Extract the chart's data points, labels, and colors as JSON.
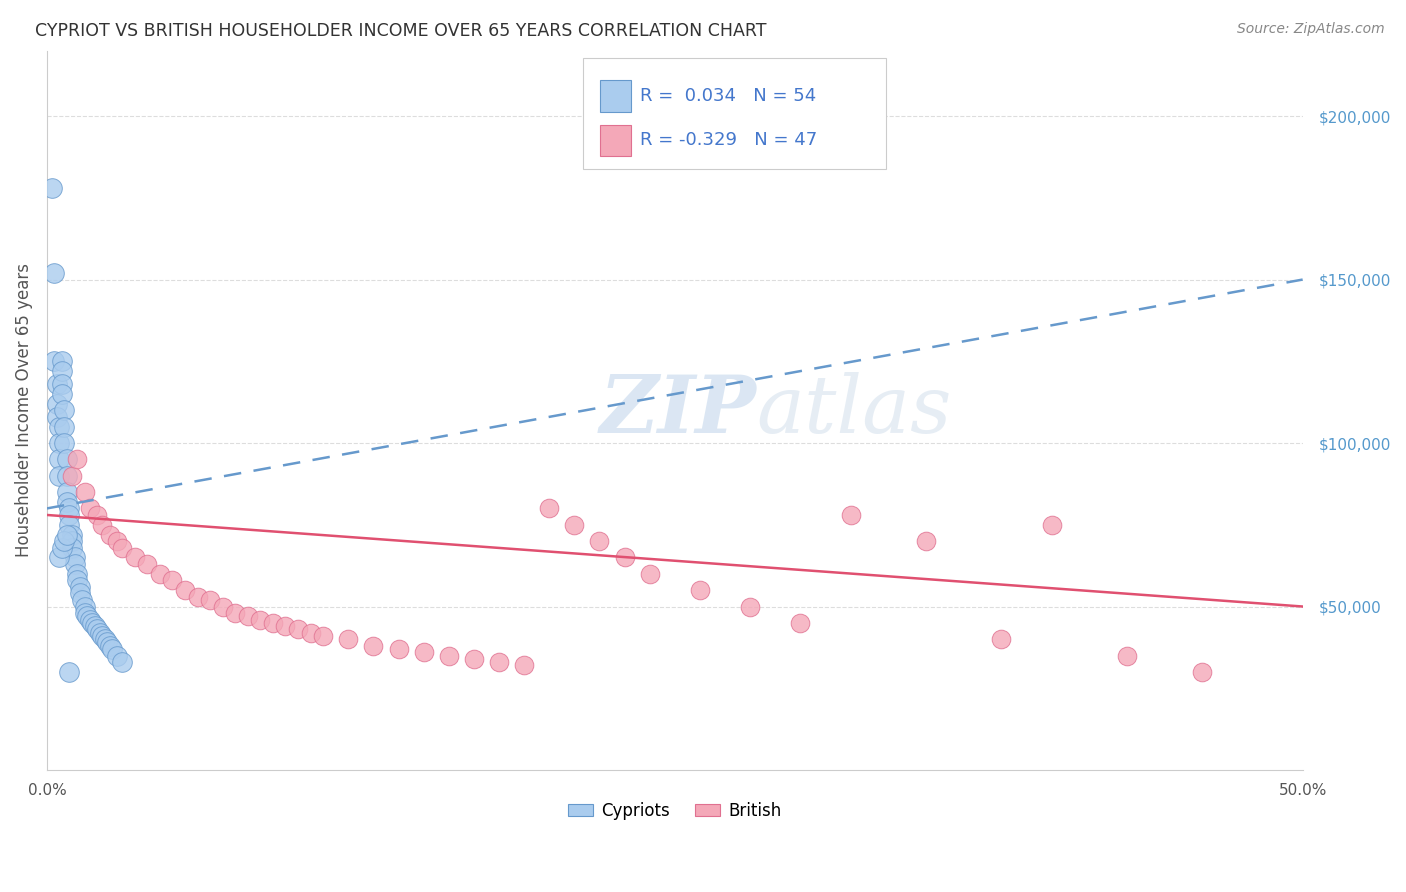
{
  "title": "CYPRIOT VS BRITISH HOUSEHOLDER INCOME OVER 65 YEARS CORRELATION CHART",
  "source": "Source: ZipAtlas.com",
  "ylabel": "Householder Income Over 65 years",
  "xlim": [
    0.0,
    0.5
  ],
  "ylim": [
    0,
    220000
  ],
  "right_yticks": [
    50000,
    100000,
    150000,
    200000
  ],
  "right_yticklabels": [
    "$50,000",
    "$100,000",
    "$150,000",
    "$200,000"
  ],
  "cypriot_color": "#aaccee",
  "british_color": "#f4a8b8",
  "cypriot_edge": "#6699cc",
  "british_edge": "#e07090",
  "trend_cypriot_color": "#6699cc",
  "trend_british_color": "#e05070",
  "R_cypriot": 0.034,
  "N_cypriot": 54,
  "R_british": -0.329,
  "N_british": 47,
  "watermark_zip": "ZIP",
  "watermark_atlas": "atlas",
  "background_color": "#ffffff",
  "grid_color": "#dddddd",
  "cypriot_x": [
    0.002,
    0.003,
    0.003,
    0.004,
    0.004,
    0.004,
    0.005,
    0.005,
    0.005,
    0.005,
    0.006,
    0.006,
    0.006,
    0.006,
    0.007,
    0.007,
    0.007,
    0.008,
    0.008,
    0.008,
    0.008,
    0.009,
    0.009,
    0.009,
    0.01,
    0.01,
    0.01,
    0.011,
    0.011,
    0.012,
    0.012,
    0.013,
    0.013,
    0.014,
    0.015,
    0.015,
    0.016,
    0.017,
    0.018,
    0.019,
    0.02,
    0.021,
    0.022,
    0.023,
    0.024,
    0.025,
    0.026,
    0.028,
    0.03,
    0.005,
    0.006,
    0.007,
    0.008,
    0.009
  ],
  "cypriot_y": [
    178000,
    152000,
    125000,
    118000,
    112000,
    108000,
    105000,
    100000,
    95000,
    90000,
    125000,
    122000,
    118000,
    115000,
    110000,
    105000,
    100000,
    95000,
    90000,
    85000,
    82000,
    80000,
    78000,
    75000,
    72000,
    70000,
    68000,
    65000,
    63000,
    60000,
    58000,
    56000,
    54000,
    52000,
    50000,
    48000,
    47000,
    46000,
    45000,
    44000,
    43000,
    42000,
    41000,
    40000,
    39000,
    38000,
    37000,
    35000,
    33000,
    65000,
    68000,
    70000,
    72000,
    30000
  ],
  "british_x": [
    0.01,
    0.012,
    0.015,
    0.017,
    0.02,
    0.022,
    0.025,
    0.028,
    0.03,
    0.035,
    0.04,
    0.045,
    0.05,
    0.055,
    0.06,
    0.065,
    0.07,
    0.075,
    0.08,
    0.085,
    0.09,
    0.095,
    0.1,
    0.105,
    0.11,
    0.12,
    0.13,
    0.14,
    0.15,
    0.16,
    0.17,
    0.18,
    0.19,
    0.2,
    0.21,
    0.22,
    0.23,
    0.24,
    0.26,
    0.28,
    0.3,
    0.32,
    0.35,
    0.38,
    0.4,
    0.43,
    0.46
  ],
  "british_y": [
    90000,
    95000,
    85000,
    80000,
    78000,
    75000,
    72000,
    70000,
    68000,
    65000,
    63000,
    60000,
    58000,
    55000,
    53000,
    52000,
    50000,
    48000,
    47000,
    46000,
    45000,
    44000,
    43000,
    42000,
    41000,
    40000,
    38000,
    37000,
    36000,
    35000,
    34000,
    33000,
    32000,
    80000,
    75000,
    70000,
    65000,
    60000,
    55000,
    50000,
    45000,
    78000,
    70000,
    40000,
    75000,
    35000,
    30000
  ]
}
